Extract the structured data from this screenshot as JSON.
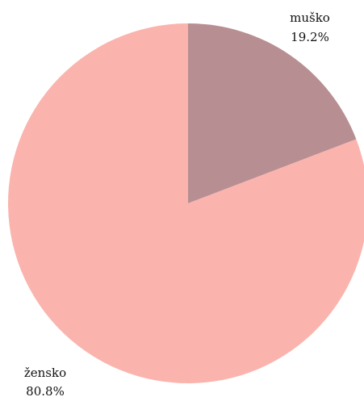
{
  "chart_data": {
    "type": "pie",
    "title": "",
    "slices": [
      {
        "label": "muško",
        "value": 19.2,
        "value_label": "19.2%",
        "color": "#b78f93"
      },
      {
        "label": "žensko",
        "value": 80.8,
        "value_label": "80.8%",
        "color": "#fab4ad"
      }
    ],
    "start_angle": "12 o'clock",
    "direction": "clockwise",
    "legend": "none"
  }
}
